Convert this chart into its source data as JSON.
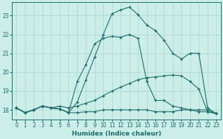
{
  "xlabel": "Humidex (Indice chaleur)",
  "bg_color": "#cceee8",
  "grid_color": "#aad4cc",
  "line_color": "#1a6b6b",
  "xlim": [
    -0.5,
    23.5
  ],
  "ylim": [
    17.5,
    23.7
  ],
  "yticks": [
    18,
    19,
    20,
    21,
    22,
    23
  ],
  "xticks": [
    0,
    1,
    2,
    3,
    4,
    5,
    6,
    7,
    8,
    9,
    10,
    11,
    12,
    13,
    14,
    15,
    16,
    17,
    18,
    19,
    20,
    21,
    22,
    23
  ],
  "lines": [
    {
      "x": [
        0,
        1,
        2,
        3,
        4,
        5,
        6,
        7,
        8,
        9,
        10,
        11,
        12,
        13,
        14,
        15,
        16,
        17,
        18,
        19,
        20,
        21,
        22,
        23
      ],
      "y": [
        18.1,
        17.85,
        18.0,
        18.2,
        18.1,
        18.05,
        17.85,
        17.85,
        17.9,
        17.9,
        18.0,
        18.0,
        18.0,
        18.0,
        18.0,
        18.0,
        17.9,
        17.9,
        17.9,
        18.0,
        18.0,
        18.0,
        18.0,
        17.8
      ]
    },
    {
      "x": [
        0,
        1,
        2,
        3,
        4,
        5,
        6,
        7,
        8,
        9,
        10,
        11,
        12,
        13,
        14,
        15,
        16,
        17,
        18,
        19,
        20,
        21,
        22,
        23
      ],
      "y": [
        18.1,
        17.85,
        18.0,
        18.2,
        18.1,
        18.05,
        17.85,
        18.4,
        19.6,
        20.8,
        22.0,
        23.1,
        23.3,
        23.45,
        23.05,
        22.5,
        22.2,
        21.7,
        21.0,
        20.7,
        21.0,
        21.0,
        18.1,
        17.8
      ]
    },
    {
      "x": [
        0,
        1,
        2,
        3,
        4,
        5,
        6,
        7,
        8,
        9,
        10,
        11,
        12,
        13,
        14,
        15,
        16,
        17,
        18,
        19,
        20,
        21,
        22,
        23
      ],
      "y": [
        18.1,
        17.85,
        18.0,
        18.2,
        18.1,
        18.05,
        17.85,
        19.5,
        20.4,
        21.5,
        21.8,
        21.9,
        21.85,
        22.0,
        21.8,
        19.5,
        18.5,
        18.5,
        18.2,
        18.1,
        18.0,
        17.9,
        17.9,
        17.8
      ]
    },
    {
      "x": [
        0,
        1,
        2,
        3,
        4,
        5,
        6,
        7,
        8,
        9,
        10,
        11,
        12,
        13,
        14,
        15,
        16,
        17,
        18,
        19,
        20,
        21,
        22,
        23
      ],
      "y": [
        18.1,
        17.85,
        18.0,
        18.2,
        18.1,
        18.2,
        18.1,
        18.2,
        18.35,
        18.5,
        18.75,
        19.0,
        19.2,
        19.4,
        19.6,
        19.7,
        19.75,
        19.8,
        19.85,
        19.8,
        19.5,
        19.1,
        17.9,
        17.8
      ]
    }
  ]
}
